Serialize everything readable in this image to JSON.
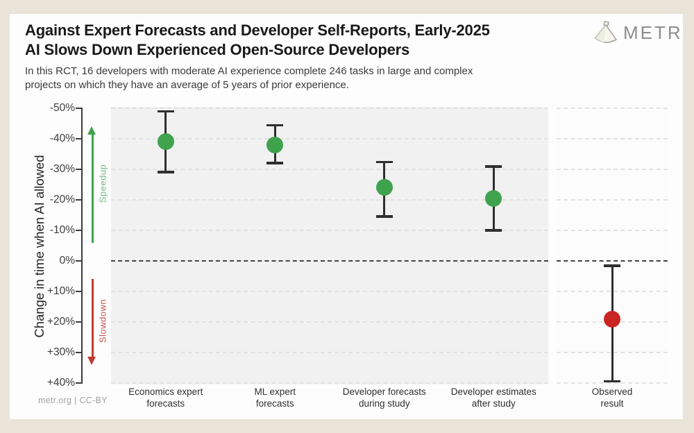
{
  "page": {
    "background": "#e9e3d8",
    "card_background": "#fdfdfd"
  },
  "header": {
    "title_line1": "Against Expert Forecasts and Developer Self-Reports, Early-2025",
    "title_line2": "AI Slows Down Experienced Open-Source Developers",
    "subtitle_line1": "In this RCT, 16 developers with moderate AI experience complete 246 tasks in large and complex",
    "subtitle_line2": "projects on which they have an average of 5 years of prior experience.",
    "logo_text": "METR"
  },
  "footer": {
    "credit": "metr.org  |  CC-BY"
  },
  "chart_data": {
    "type": "scatter",
    "title": "Against Expert Forecasts and Developer Self-Reports, Early-2025 AI Slows Down Experienced Open-Source Developers",
    "ylabel": "Change in time when AI allowed",
    "y_unit": "%",
    "y_inverted": true,
    "ylim": [
      -50,
      40
    ],
    "yticks": [
      -50,
      -40,
      -30,
      -20,
      -10,
      0,
      10,
      20,
      30,
      40
    ],
    "ytick_labels": [
      "-50%",
      "-40%",
      "-30%",
      "-20%",
      "-10%",
      "0%",
      "+10%",
      "+20%",
      "+30%",
      "+40%"
    ],
    "grid": "horizontal-dashed",
    "zero_line": "dark-dashed",
    "annotations": [
      {
        "text": "Speedup",
        "direction": "up",
        "arrow_color": "#3fa34d",
        "text_color": "#74b883",
        "value_span": [
          -44,
          -6
        ]
      },
      {
        "text": "Slowdown",
        "direction": "down",
        "arrow_color": "#c23b32",
        "text_color": "#c4544c",
        "value_span": [
          6,
          34
        ]
      }
    ],
    "points": [
      {
        "category": [
          "Economics expert",
          "forecasts"
        ],
        "panel": "forecasts",
        "value": -39,
        "ci": [
          -49,
          -29
        ],
        "dot_color": "#3fa34d"
      },
      {
        "category": [
          "ML expert",
          "forecasts"
        ],
        "panel": "forecasts",
        "value": -38,
        "ci": [
          -44.5,
          -32
        ],
        "dot_color": "#3fa34d"
      },
      {
        "category": [
          "Developer forecasts",
          "during study"
        ],
        "panel": "forecasts",
        "value": -24,
        "ci": [
          -32.5,
          -14.5
        ],
        "dot_color": "#3fa34d"
      },
      {
        "category": [
          "Developer estimates",
          "after study"
        ],
        "panel": "forecasts",
        "value": -20.5,
        "ci": [
          -31,
          -10
        ],
        "dot_color": "#3fa34d"
      },
      {
        "category": [
          "Observed",
          "result"
        ],
        "panel": "observed",
        "value": 19,
        "ci": [
          1.5,
          39.5
        ],
        "dot_color": "#c92523"
      }
    ]
  }
}
